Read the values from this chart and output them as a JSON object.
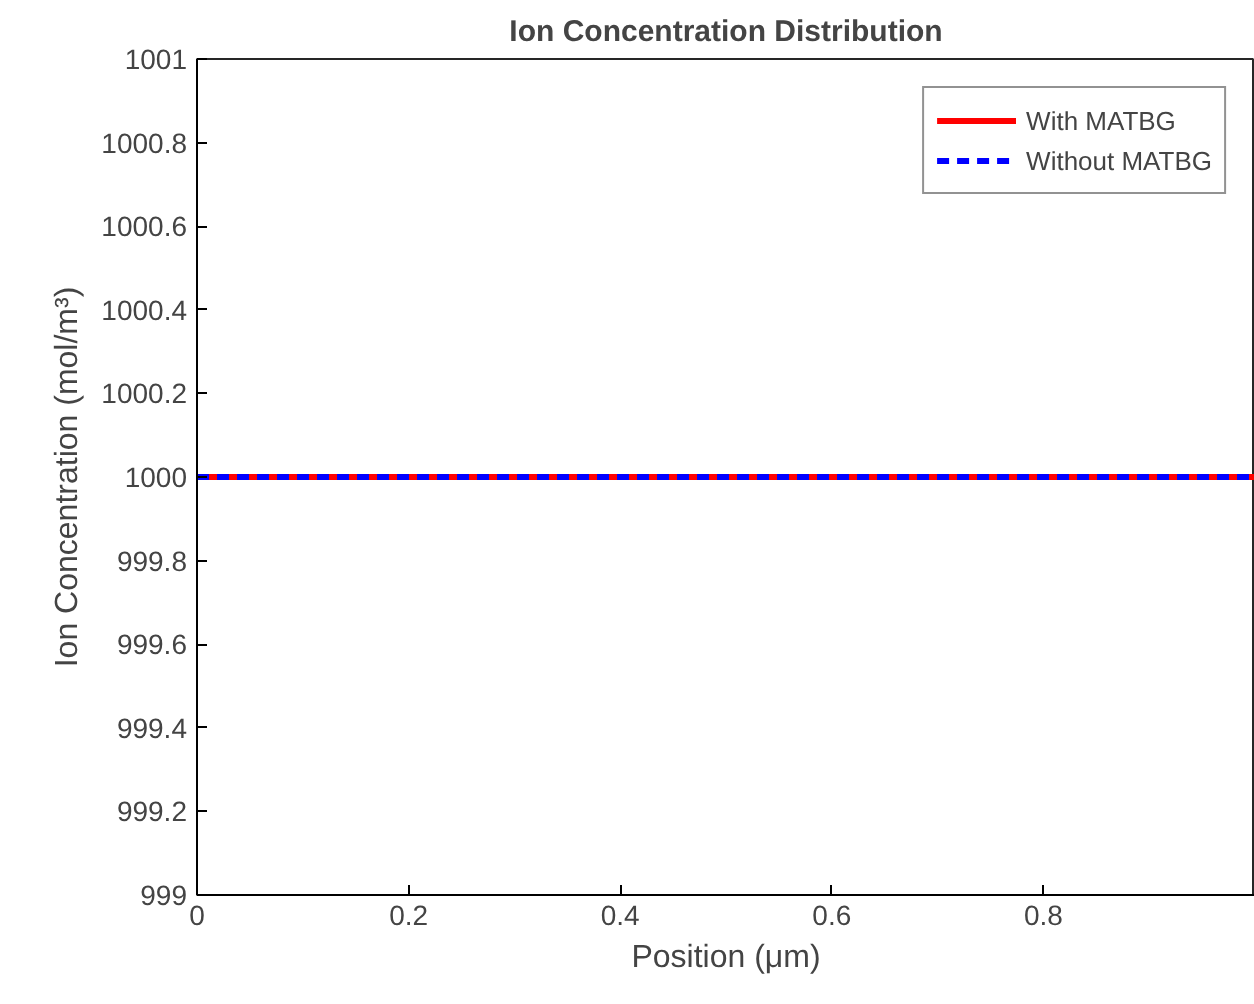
{
  "chart_data": {
    "type": "line",
    "title": "Ion Concentration Distribution",
    "xlabel": "Position (μm)",
    "ylabel": "Ion Concentration (mol/m³)",
    "x": [
      0,
      1
    ],
    "series": [
      {
        "name": "With MATBG",
        "color": "#ff0000",
        "values": [
          1000,
          1000
        ],
        "line_style": "solid"
      },
      {
        "name": "Without MATBG",
        "color": "#0000ff",
        "values": [
          1000,
          1000
        ],
        "line_style": "dashed"
      }
    ],
    "xlim": [
      0,
      1
    ],
    "ylim": [
      999,
      1001
    ],
    "xticks": [
      0,
      0.2,
      0.4,
      0.6,
      0.8
    ],
    "yticks": [
      999,
      999.2,
      999.4,
      999.6,
      999.8,
      1000,
      1000.2,
      1000.4,
      1000.6,
      1000.8,
      1001
    ],
    "grid": false,
    "legend": "top right",
    "marker": "none"
  }
}
